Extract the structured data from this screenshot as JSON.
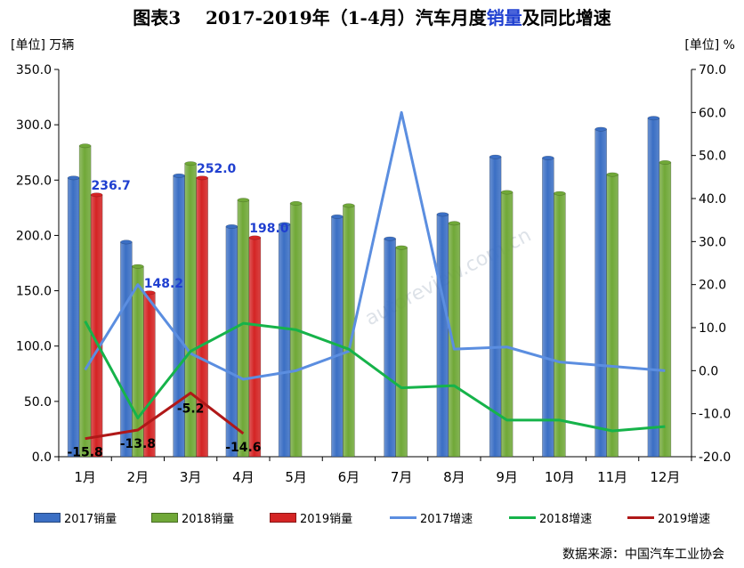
{
  "title": {
    "prefix": "图表3",
    "main_a": "2017-2019年（1-4月）汽车月度",
    "main_hl": "销量",
    "main_b": "及同比增速"
  },
  "units": {
    "left": "[单位] 万辆",
    "right": "[单位] %"
  },
  "source": "数据来源：中国汽车工业协会",
  "watermark": "autoreview.com.cn",
  "colors": {
    "bar2017": "#3b6fc4",
    "bar2018": "#70a838",
    "bar2019": "#d42424",
    "line2017": "#5b8ee0",
    "line2018": "#16b34a",
    "line2019": "#b01818",
    "label2019": "#1f3fd0",
    "axis": "#000000",
    "grid": "#d9d9d9"
  },
  "chart_data": {
    "type": "bar",
    "categories": [
      "1月",
      "2月",
      "3月",
      "4月",
      "5月",
      "6月",
      "7月",
      "8月",
      "9月",
      "10月",
      "11月",
      "12月"
    ],
    "bar_series": [
      {
        "name": "2017销量",
        "values": [
          252,
          194,
          254,
          208,
          210,
          217,
          197,
          219,
          271,
          270,
          296,
          306
        ]
      },
      {
        "name": "2018销量",
        "values": [
          281,
          172,
          265,
          232,
          229,
          227,
          189,
          211,
          239,
          238,
          255,
          266
        ]
      },
      {
        "name": "2019销量",
        "values": [
          236.7,
          148.2,
          252.0,
          198.0
        ]
      }
    ],
    "line_series": [
      {
        "name": "2017增速",
        "values": [
          0.2,
          20.0,
          4.0,
          -2.0,
          0.0,
          4.5,
          60.0,
          5.0,
          5.5,
          2.0,
          1.0,
          0.0
        ]
      },
      {
        "name": "2018增速",
        "values": [
          11.5,
          -11.0,
          4.5,
          11.0,
          9.5,
          5.0,
          -4.0,
          -3.5,
          -11.5,
          -11.5,
          -14.0,
          -13.0
        ]
      },
      {
        "name": "2019增速",
        "values": [
          -15.8,
          -13.8,
          -5.2,
          -14.6
        ]
      }
    ],
    "bar_labels_2019": [
      "236.7",
      "148.2",
      "252.0",
      "198.0"
    ],
    "line_labels_2019": [
      "-15.8",
      "-13.8",
      "-5.2",
      "-14.6"
    ],
    "y_left": {
      "min": 0,
      "max": 350,
      "step": 50,
      "ticks": [
        "0.0",
        "50.0",
        "100.0",
        "150.0",
        "200.0",
        "250.0",
        "300.0",
        "350.0"
      ]
    },
    "y_right": {
      "min": -20,
      "max": 70,
      "step": 10,
      "ticks": [
        "-20.0",
        "-10.0",
        "0.0",
        "10.0",
        "20.0",
        "30.0",
        "40.0",
        "50.0",
        "60.0",
        "70.0"
      ]
    },
    "grid": false,
    "legend_position": "bottom"
  }
}
